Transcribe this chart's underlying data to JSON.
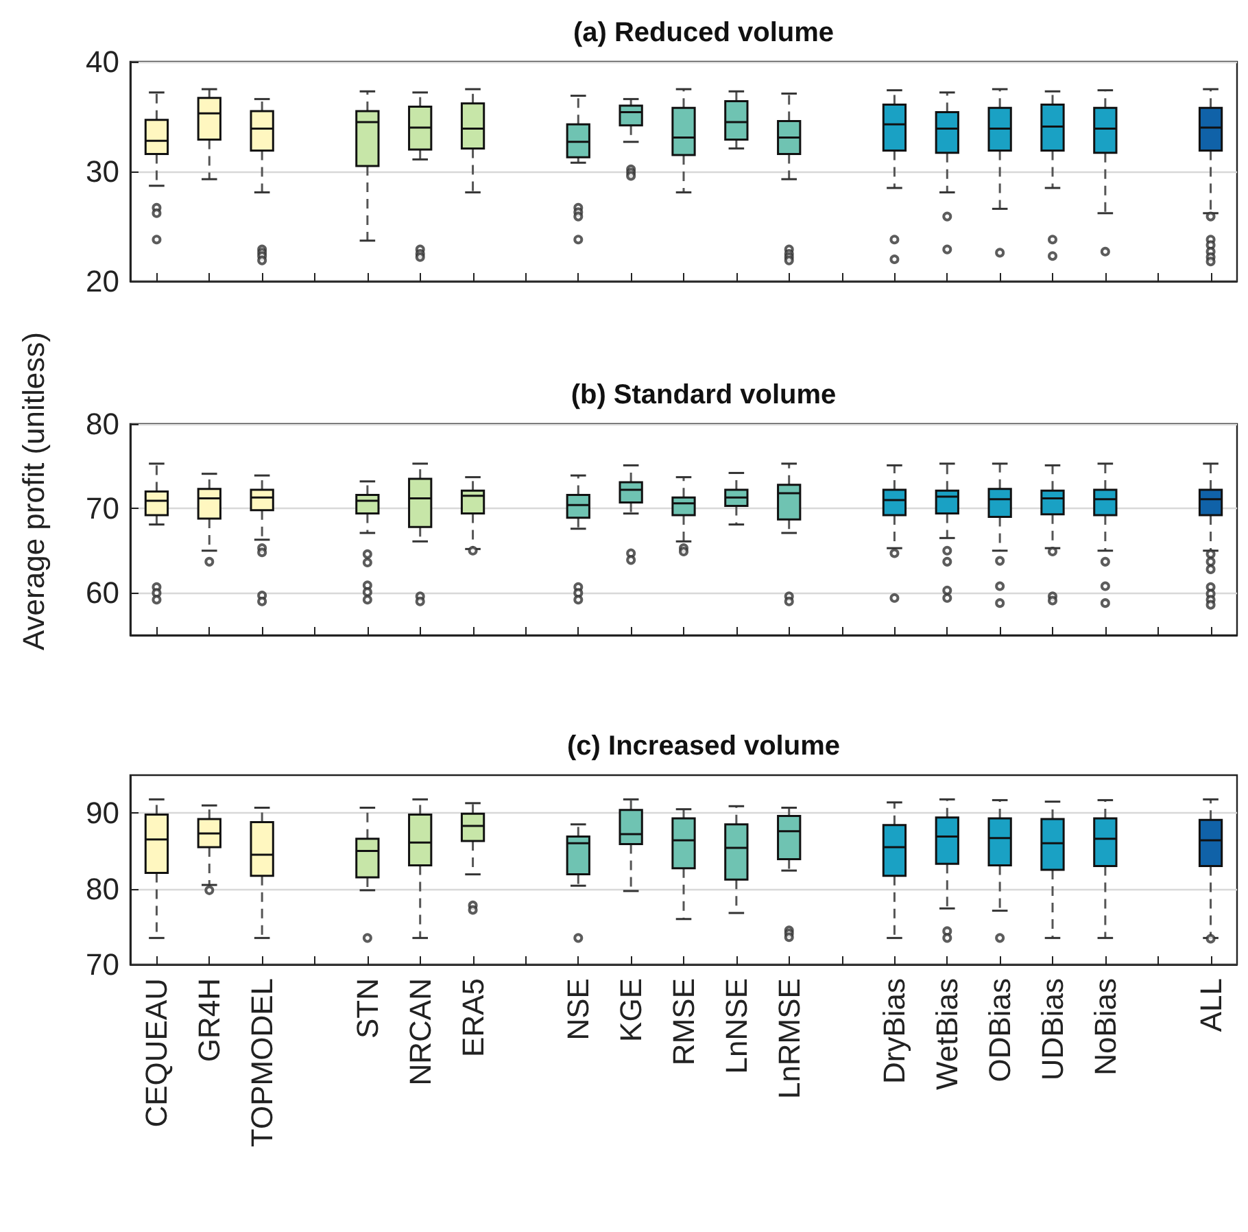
{
  "chart_data": [
    {
      "type": "box",
      "title": "(a) Reduced volume",
      "categories": [
        null,
        null,
        null,
        null,
        null,
        null,
        null,
        null,
        null,
        null,
        null,
        null,
        null,
        null,
        null,
        null,
        null,
        null,
        null,
        null,
        null
      ],
      "colors": [
        "#fff7c0",
        "#fff7c0",
        "#fff7c0",
        null,
        "#c7e6a8",
        "#c7e6a8",
        "#c7e6a8",
        null,
        "#6fc3b2",
        "#6fc3b2",
        "#6fc3b2",
        "#6fc3b2",
        "#6fc3b2",
        null,
        "#1aa1c4",
        "#1aa1c4",
        "#1aa1c4",
        "#1aa1c4",
        "#1aa1c4",
        null,
        "#1062a8"
      ],
      "boxes": [
        {
          "low": 28.7,
          "q1": 31.6,
          "median": 32.8,
          "q3": 34.7,
          "high": 37.2,
          "outliers": [
            26.7,
            26.2,
            23.8
          ]
        },
        {
          "low": 29.3,
          "q1": 32.9,
          "median": 35.3,
          "q3": 36.7,
          "high": 37.5
        },
        {
          "low": 28.1,
          "q1": 31.9,
          "median": 33.9,
          "q3": 35.5,
          "high": 36.6,
          "outliers": [
            22.9,
            22.6,
            22.3,
            21.9
          ]
        },
        null,
        {
          "low": 23.7,
          "q1": 30.5,
          "median": 34.5,
          "q3": 35.5,
          "high": 37.3
        },
        {
          "low": 31.1,
          "q1": 32.0,
          "median": 34.0,
          "q3": 35.9,
          "high": 37.2,
          "outliers": [
            22.9,
            22.5,
            22.2
          ]
        },
        {
          "low": 28.1,
          "q1": 32.1,
          "median": 33.9,
          "q3": 36.2,
          "high": 37.5
        },
        null,
        {
          "low": 30.8,
          "q1": 31.3,
          "median": 32.7,
          "q3": 34.3,
          "high": 36.9,
          "outliers": [
            26.7,
            26.3,
            25.9,
            23.8
          ]
        },
        {
          "low": 32.7,
          "q1": 34.2,
          "median": 35.4,
          "q3": 36.0,
          "high": 36.6,
          "outliers": [
            30.2,
            29.9,
            29.6
          ]
        },
        {
          "low": 28.1,
          "q1": 31.5,
          "median": 33.1,
          "q3": 35.8,
          "high": 37.5
        },
        {
          "low": 32.1,
          "q1": 32.9,
          "median": 34.5,
          "q3": 36.4,
          "high": 37.3
        },
        {
          "low": 29.3,
          "q1": 31.6,
          "median": 33.1,
          "q3": 34.6,
          "high": 37.1,
          "outliers": [
            22.9,
            22.5,
            22.2,
            21.9
          ]
        },
        null,
        {
          "low": 28.5,
          "q1": 31.9,
          "median": 34.3,
          "q3": 36.1,
          "high": 37.4,
          "outliers": [
            23.8,
            22.0
          ]
        },
        {
          "low": 28.1,
          "q1": 31.7,
          "median": 33.9,
          "q3": 35.4,
          "high": 37.2,
          "outliers": [
            25.9,
            22.9
          ]
        },
        {
          "low": 26.6,
          "q1": 31.9,
          "median": 33.9,
          "q3": 35.8,
          "high": 37.5,
          "outliers": [
            22.6
          ]
        },
        {
          "low": 28.5,
          "q1": 31.9,
          "median": 34.1,
          "q3": 36.1,
          "high": 37.3,
          "outliers": [
            23.8,
            22.3
          ]
        },
        {
          "low": 26.2,
          "q1": 31.7,
          "median": 33.9,
          "q3": 35.8,
          "high": 37.4,
          "outliers": [
            22.7
          ]
        },
        null,
        {
          "low": 26.2,
          "q1": 31.9,
          "median": 34.0,
          "q3": 35.8,
          "high": 37.5,
          "outliers": [
            25.9,
            23.8,
            23.3,
            22.7,
            22.2,
            21.8
          ]
        }
      ],
      "ylim": [
        20,
        40
      ],
      "yticks": [
        20,
        30,
        40
      ],
      "grid": "y",
      "tick_labels": "y"
    },
    {
      "type": "box",
      "title": "(b) Standard volume",
      "ylabel": "Average profit (unitless)",
      "categories": [
        null,
        null,
        null,
        null,
        null,
        null,
        null,
        null,
        null,
        null,
        null,
        null,
        null,
        null,
        null,
        null,
        null,
        null,
        null,
        null,
        null
      ],
      "colors": [
        "#fff7c0",
        "#fff7c0",
        "#fff7c0",
        null,
        "#c7e6a8",
        "#c7e6a8",
        "#c7e6a8",
        null,
        "#6fc3b2",
        "#6fc3b2",
        "#6fc3b2",
        "#6fc3b2",
        "#6fc3b2",
        null,
        "#1aa1c4",
        "#1aa1c4",
        "#1aa1c4",
        "#1aa1c4",
        "#1aa1c4",
        null,
        "#1062a8"
      ],
      "boxes": [
        {
          "low": 68.1,
          "q1": 69.2,
          "median": 70.9,
          "q3": 72.0,
          "high": 75.3,
          "outliers": [
            60.7,
            60.0,
            59.2
          ]
        },
        {
          "low": 65.0,
          "q1": 68.8,
          "median": 71.2,
          "q3": 72.3,
          "high": 74.1,
          "outliers": [
            63.7
          ]
        },
        {
          "low": 66.3,
          "q1": 69.8,
          "median": 71.3,
          "q3": 72.2,
          "high": 73.9,
          "outliers": [
            65.3,
            64.8,
            59.7,
            59.0
          ]
        },
        null,
        {
          "low": 67.1,
          "q1": 69.4,
          "median": 70.9,
          "q3": 71.6,
          "high": 73.2,
          "outliers": [
            64.6,
            63.6,
            60.9,
            60.1,
            59.2
          ]
        },
        {
          "low": 66.1,
          "q1": 67.8,
          "median": 71.2,
          "q3": 73.5,
          "high": 75.3,
          "outliers": [
            59.6,
            59.0
          ]
        },
        {
          "low": 65.2,
          "q1": 69.4,
          "median": 71.5,
          "q3": 72.1,
          "high": 73.7,
          "outliers": [
            65.0
          ]
        },
        null,
        {
          "low": 67.6,
          "q1": 68.9,
          "median": 70.4,
          "q3": 71.6,
          "high": 73.9,
          "outliers": [
            60.7,
            60.0,
            59.2
          ]
        },
        {
          "low": 69.4,
          "q1": 70.7,
          "median": 72.2,
          "q3": 73.1,
          "high": 75.1,
          "outliers": [
            64.7,
            63.9
          ]
        },
        {
          "low": 66.1,
          "q1": 69.2,
          "median": 70.6,
          "q3": 71.3,
          "high": 73.7,
          "outliers": [
            65.3,
            64.9
          ]
        },
        {
          "low": 68.1,
          "q1": 70.3,
          "median": 71.3,
          "q3": 72.2,
          "high": 74.2
        },
        {
          "low": 67.1,
          "q1": 68.7,
          "median": 71.8,
          "q3": 72.8,
          "high": 75.3,
          "outliers": [
            59.6,
            59.0
          ]
        },
        null,
        {
          "low": 65.3,
          "q1": 69.2,
          "median": 71.0,
          "q3": 72.2,
          "high": 75.1,
          "outliers": [
            64.7,
            59.4
          ]
        },
        {
          "low": 66.5,
          "q1": 69.4,
          "median": 71.4,
          "q3": 72.1,
          "high": 75.3,
          "outliers": [
            65.0,
            63.7,
            60.3,
            59.4
          ]
        },
        {
          "low": 65.0,
          "q1": 69.0,
          "median": 71.1,
          "q3": 72.3,
          "high": 75.3,
          "outliers": [
            63.8,
            60.8,
            58.8
          ]
        },
        {
          "low": 65.3,
          "q1": 69.3,
          "median": 71.2,
          "q3": 72.1,
          "high": 75.1,
          "outliers": [
            64.9,
            59.6,
            59.1
          ]
        },
        {
          "low": 65.0,
          "q1": 69.2,
          "median": 71.1,
          "q3": 72.2,
          "high": 75.3,
          "outliers": [
            63.7,
            60.8,
            58.8
          ]
        },
        null,
        {
          "low": 65.0,
          "q1": 69.2,
          "median": 71.1,
          "q3": 72.2,
          "high": 75.3,
          "outliers": [
            64.6,
            63.7,
            62.8,
            60.7,
            59.9,
            59.2,
            58.6
          ]
        }
      ],
      "ylim": [
        55,
        80
      ],
      "yticks": [
        60,
        70,
        80
      ],
      "grid": "y",
      "tick_labels": "y"
    },
    {
      "type": "box",
      "title": "(c) Increased volume",
      "categories": [
        "CEQUEAU",
        "GR4H",
        "TOPMODEL",
        null,
        "STN",
        "NRCAN",
        "ERA5",
        null,
        "NSE",
        "KGE",
        "RMSE",
        "LnNSE",
        "LnRMSE",
        null,
        "DryBias",
        "WetBias",
        "ODBias",
        "UDBias",
        "NoBias",
        null,
        "ALL"
      ],
      "colors": [
        "#fff7c0",
        "#fff7c0",
        "#fff7c0",
        null,
        "#c7e6a8",
        "#c7e6a8",
        "#c7e6a8",
        null,
        "#6fc3b2",
        "#6fc3b2",
        "#6fc3b2",
        "#6fc3b2",
        "#6fc3b2",
        null,
        "#1aa1c4",
        "#1aa1c4",
        "#1aa1c4",
        "#1aa1c4",
        "#1aa1c4",
        null,
        "#1062a8"
      ],
      "boxes": [
        {
          "low": 73.5,
          "q1": 82.1,
          "median": 86.5,
          "q3": 89.8,
          "high": 91.8
        },
        {
          "low": 80.5,
          "q1": 85.5,
          "median": 87.3,
          "q3": 89.2,
          "high": 91.0,
          "outliers": [
            79.8
          ]
        },
        {
          "low": 73.5,
          "q1": 81.7,
          "median": 84.5,
          "q3": 88.8,
          "high": 90.7
        },
        null,
        {
          "low": 79.8,
          "q1": 81.5,
          "median": 85.0,
          "q3": 86.6,
          "high": 90.7,
          "outliers": [
            73.5
          ]
        },
        {
          "low": 73.5,
          "q1": 83.1,
          "median": 86.1,
          "q3": 89.8,
          "high": 91.8
        },
        {
          "low": 81.9,
          "q1": 86.3,
          "median": 88.3,
          "q3": 89.9,
          "high": 91.3,
          "outliers": [
            77.8,
            77.2
          ]
        },
        null,
        {
          "low": 80.4,
          "q1": 81.9,
          "median": 86.0,
          "q3": 86.9,
          "high": 88.5,
          "outliers": [
            73.5
          ]
        },
        {
          "low": 79.7,
          "q1": 85.9,
          "median": 87.2,
          "q3": 90.4,
          "high": 91.8
        },
        {
          "low": 76.0,
          "q1": 82.7,
          "median": 86.4,
          "q3": 89.3,
          "high": 90.5
        },
        {
          "low": 76.8,
          "q1": 81.2,
          "median": 85.4,
          "q3": 88.5,
          "high": 90.9
        },
        {
          "low": 82.4,
          "q1": 83.9,
          "median": 87.6,
          "q3": 89.6,
          "high": 90.7,
          "outliers": [
            74.5,
            74.1,
            73.6
          ]
        },
        null,
        {
          "low": 73.5,
          "q1": 81.7,
          "median": 85.5,
          "q3": 88.4,
          "high": 91.4
        },
        {
          "low": 77.4,
          "q1": 83.3,
          "median": 86.9,
          "q3": 89.4,
          "high": 91.8,
          "outliers": [
            74.4,
            73.5
          ]
        },
        {
          "low": 77.1,
          "q1": 83.1,
          "median": 86.7,
          "q3": 89.3,
          "high": 91.7,
          "outliers": [
            73.5
          ]
        },
        {
          "low": 73.5,
          "q1": 82.5,
          "median": 86.0,
          "q3": 89.2,
          "high": 91.5
        },
        {
          "low": 73.5,
          "q1": 83.0,
          "median": 86.6,
          "q3": 89.3,
          "high": 91.7
        },
        null,
        {
          "low": 73.5,
          "q1": 83.0,
          "median": 86.4,
          "q3": 89.1,
          "high": 91.8,
          "outliers": [
            73.4
          ]
        }
      ],
      "ylim": [
        70,
        95
      ],
      "yticks": [
        70,
        80,
        90
      ],
      "grid": "y"
    }
  ]
}
